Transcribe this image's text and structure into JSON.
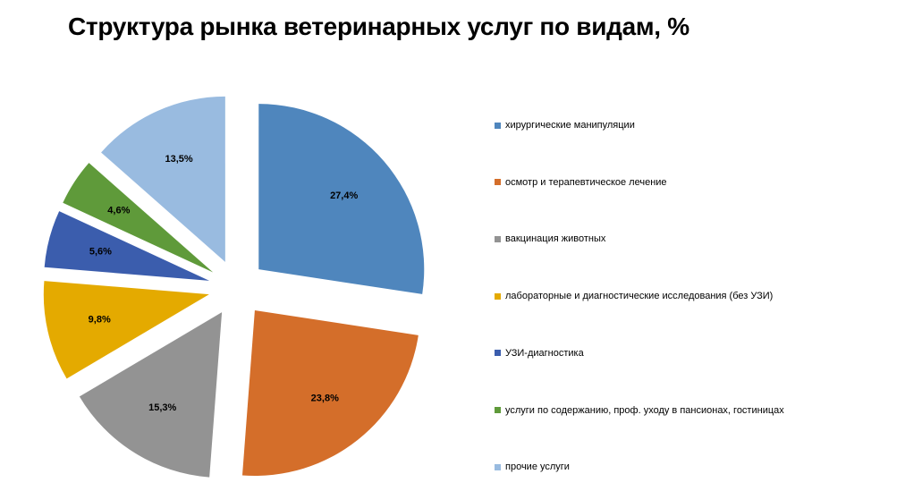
{
  "chart_data": {
    "type": "pie",
    "title": "Структура рынка ветеринарных услуг по видам, %",
    "legend_position": "right",
    "exploded": true,
    "slices": [
      {
        "name": "хирургические манипуляции",
        "value": 27.4,
        "label": "27,4%",
        "color": "#4F86BD"
      },
      {
        "name": "осмотр и терапевтическое  лечение",
        "value": 23.8,
        "label": "23,8%",
        "color": "#D46E2A"
      },
      {
        "name": "вакцинация животных",
        "value": 15.3,
        "label": "15,3%",
        "color": "#939393"
      },
      {
        "name": "лабораторные и  диагностические исследования (без УЗИ)",
        "value": 9.8,
        "label": "9,8%",
        "color": "#E4AA00"
      },
      {
        "name": "УЗИ-диагностика",
        "value": 5.6,
        "label": "5,6%",
        "color": "#3B5DAD"
      },
      {
        "name": "услуги по содержанию,  проф. уходу в пансионах, гостиницах",
        "value": 4.6,
        "label": "4,6%",
        "color": "#5F9A3A"
      },
      {
        "name": "прочие услуги",
        "value": 13.5,
        "label": "13,5%",
        "color": "#99BBE0"
      }
    ]
  }
}
